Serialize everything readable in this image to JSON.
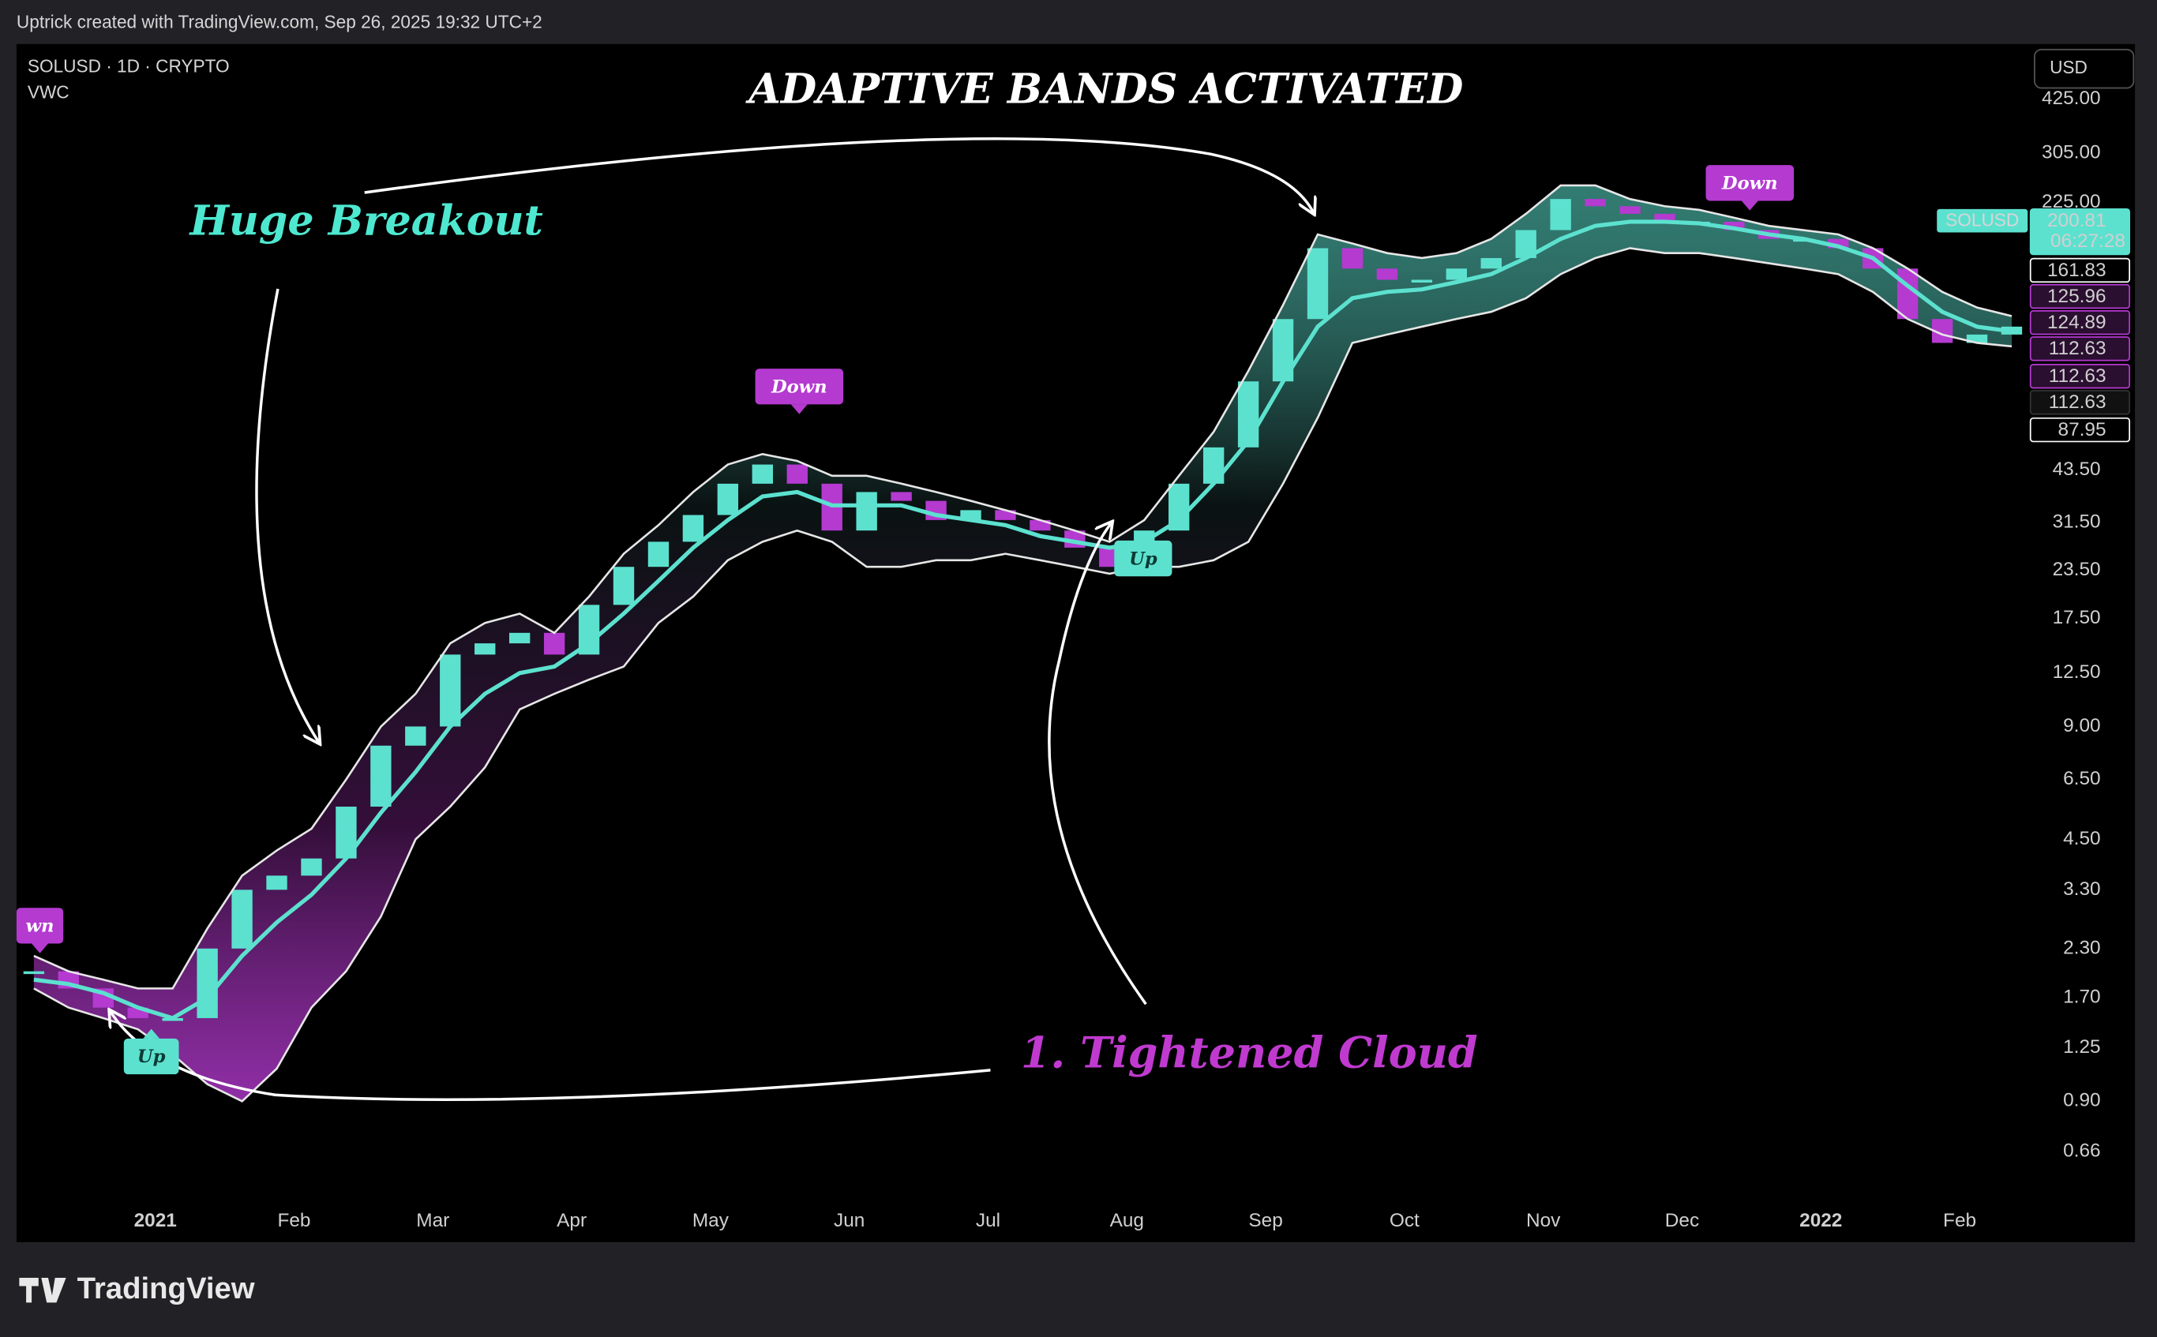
{
  "header": "Uptrick created with TradingView.com, Sep 26, 2025 19:32 UTC+2",
  "footer_logo": "TradingView",
  "chart_data": {
    "type": "candlestick",
    "symbol": "SOLUSD · 1D · CRYPTO",
    "indicator": "VWC",
    "currency": "USD",
    "title": "ADAPTIVE BANDS ACTIVATED",
    "annotations": [
      "Huge Breakout",
      "1. Tightened Cloud"
    ],
    "signals": [
      "wn",
      "Up",
      "Down",
      "Up",
      "Down"
    ],
    "log_scale": true,
    "categories": [
      null,
      null,
      null,
      null,
      "2021",
      null,
      null,
      null,
      "Feb",
      null,
      null,
      null,
      "Mar",
      null,
      null,
      null,
      "Apr",
      null,
      null,
      null,
      "May",
      null,
      null,
      null,
      "Jun",
      null,
      null,
      null,
      "Jul",
      null,
      null,
      null,
      "Aug",
      null,
      null,
      null,
      "Sep",
      null,
      null,
      null,
      "Oct",
      null,
      null,
      null,
      "Nov",
      null,
      null,
      null,
      "Dec",
      null,
      null,
      null,
      "2022",
      null,
      null,
      null,
      "Feb",
      null
    ],
    "up_color": "#5ce1cf",
    "down_color": "#b43ad0",
    "series": [
      {
        "color": "#5ce1cf",
        "values": [
          2.0,
          1.8,
          1.6,
          1.5,
          1.5,
          2.3,
          3.3,
          3.6,
          4.0,
          5.5,
          8.0,
          9.0,
          14,
          15,
          16,
          14,
          19,
          24,
          28,
          33,
          40,
          45,
          40,
          30,
          38,
          36,
          32,
          34,
          32,
          30,
          27,
          24,
          30,
          40,
          50,
          75,
          110,
          170,
          150,
          140,
          140,
          150,
          160,
          190,
          230,
          220,
          210,
          200,
          200,
          190,
          180,
          180,
          170,
          150,
          110,
          95,
          100,
          105
        ]
      },
      {
        "color": "#e6e6e6",
        "values": [
          2.2,
          2.0,
          1.9,
          1.8,
          1.8,
          2.6,
          3.6,
          4.2,
          4.8,
          6.5,
          9,
          11,
          15,
          17,
          18,
          16,
          20,
          26,
          31,
          38,
          45,
          48,
          46,
          42,
          42,
          40,
          38,
          36,
          34,
          32,
          30,
          28,
          32,
          42,
          55,
          80,
          120,
          185,
          175,
          165,
          160,
          165,
          180,
          210,
          250,
          250,
          230,
          220,
          215,
          205,
          195,
          190,
          185,
          170,
          150,
          130,
          118,
          112
        ]
      },
      {
        "color": "#5ce1cf",
        "values": [
          1.9,
          1.85,
          1.75,
          1.6,
          1.5,
          1.7,
          2.2,
          2.7,
          3.2,
          4.0,
          5.3,
          6.8,
          9,
          11,
          12.5,
          13,
          15,
          18,
          22,
          27,
          32,
          37,
          38,
          35,
          35,
          35,
          33,
          32,
          31,
          29,
          28,
          27,
          28,
          32,
          40,
          52,
          75,
          105,
          125,
          130,
          132,
          138,
          145,
          160,
          180,
          195,
          200,
          200,
          198,
          192,
          185,
          180,
          172,
          160,
          135,
          115,
          105,
          102
        ]
      },
      {
        "color": "#e6e6e6",
        "values": [
          1.8,
          1.6,
          1.5,
          1.4,
          1.2,
          1.0,
          0.9,
          1.1,
          1.6,
          2.0,
          2.8,
          4.5,
          5.5,
          7,
          10,
          11,
          12,
          13,
          17,
          20,
          25,
          28,
          30,
          28,
          24,
          24,
          25,
          25,
          26,
          25,
          24,
          23,
          24,
          24,
          25,
          28,
          40,
          60,
          95,
          100,
          105,
          110,
          115,
          125,
          145,
          160,
          170,
          165,
          165,
          160,
          155,
          150,
          145,
          130,
          110,
          100,
          95,
          93
        ]
      }
    ],
    "ylim": [
      0.48,
      596
    ],
    "yticks": [
      0.66,
      {
        "value": 0.9,
        "label": "0.90"
      },
      1.25,
      {
        "value": 1.7,
        "label": "1.70"
      },
      {
        "value": 2.3,
        "label": "2.30"
      },
      {
        "value": 3.3,
        "label": "3.30"
      },
      {
        "value": 4.5,
        "label": "4.50"
      },
      {
        "value": 6.5,
        "label": "6.50"
      },
      {
        "value": 9,
        "label": "9.00"
      },
      {
        "value": 12.5,
        "label": "12.50"
      },
      {
        "value": 17.5,
        "label": "17.50"
      },
      {
        "value": 23.5,
        "label": "23.50"
      },
      {
        "value": 31.5,
        "label": "31.50"
      },
      {
        "value": 43.5,
        "label": "43.50"
      },
      {
        "value": 225,
        "label": "225.00"
      },
      {
        "value": 305,
        "label": "305.00"
      },
      {
        "value": 425,
        "label": "425.00"
      }
    ],
    "symbol_tag": "SOLUSD",
    "countdown": "06:27:28",
    "price_labels": [
      {
        "value": 200.81,
        "bg": "#5ce1cf",
        "fg": "#000000",
        "border": "#5ce1cf"
      },
      {
        "value": 161.83,
        "bg": "#000000",
        "fg": "#ffffff",
        "border": "#ffffff"
      },
      {
        "value": 125.96,
        "bg": "#2a0f30",
        "fg": "#c060d8",
        "border": "#b43ad0"
      },
      {
        "value": 124.89,
        "bg": "#2a0f30",
        "fg": "#c060d8",
        "border": "#b43ad0"
      },
      {
        "value": 112.63,
        "bg": "#2a0f30",
        "fg": "#c060d8",
        "border": "#b43ad0"
      },
      {
        "value": 112.63,
        "bg": "#2a0f30",
        "fg": "#c060d8",
        "border": "#b43ad0"
      },
      {
        "value": 112.63,
        "bg": "#111111",
        "fg": "#555555",
        "border": "#333333"
      },
      {
        "value": 87.95,
        "bg": "#000000",
        "fg": "#ffffff",
        "border": "#ffffff"
      }
    ]
  }
}
